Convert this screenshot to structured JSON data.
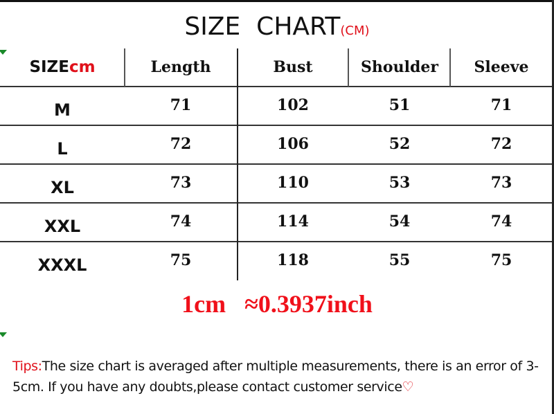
{
  "title": {
    "main": "SIZE  CHART",
    "unit": "(CM)"
  },
  "table": {
    "header": {
      "size": "SIZE",
      "size_unit": "cm",
      "columns": [
        "Length",
        "Bust",
        "Shoulder",
        "Sleeve"
      ]
    },
    "rows": [
      {
        "size": "M",
        "values": [
          "71",
          "102",
          "51",
          "71"
        ]
      },
      {
        "size": "L",
        "values": [
          "72",
          "106",
          "52",
          "72"
        ]
      },
      {
        "size": "XL",
        "values": [
          "73",
          "110",
          "53",
          "73"
        ]
      },
      {
        "size": "XXL",
        "values": [
          "74",
          "114",
          "54",
          "74"
        ]
      },
      {
        "size": "XXXL",
        "values": [
          "75",
          "118",
          "55",
          "75"
        ]
      }
    ]
  },
  "conversion": "1cm   ≈0.3937inch",
  "tips": {
    "label": "Tips:",
    "text": "The size chart is averaged after multiple measurements, there is an error of 3-5cm. If you have any doubts,please contact customer service",
    "icon": "heart-icon"
  },
  "colors": {
    "accent": "#e0101a",
    "text": "#111111"
  }
}
